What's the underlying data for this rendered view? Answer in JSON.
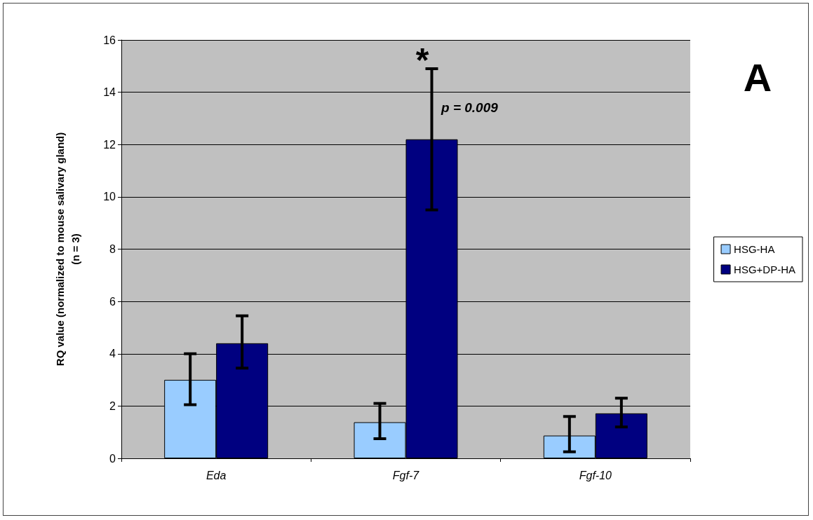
{
  "chart_data": {
    "type": "bar",
    "ylabel": "RQ value (normalized to mouse salivary gland)\n(n = 3)",
    "categories": [
      "Eda",
      "Fgf-7",
      "Fgf-10"
    ],
    "series": [
      {
        "name": "HSG-HA",
        "color": "#99ccff",
        "values": [
          3.0,
          1.38,
          0.87
        ],
        "errors": [
          [
            2.05,
            4.0
          ],
          [
            0.75,
            2.1
          ],
          [
            0.25,
            1.6
          ]
        ]
      },
      {
        "name": "HSG+DP-HA",
        "color": "#000080",
        "values": [
          4.4,
          12.2,
          1.72
        ],
        "errors": [
          [
            3.45,
            5.45
          ],
          [
            9.5,
            14.9
          ],
          [
            1.2,
            2.3
          ]
        ]
      }
    ],
    "ylim": [
      0,
      16
    ],
    "yticks": [
      0,
      2,
      4,
      6,
      8,
      10,
      12,
      14,
      16
    ],
    "grid": "y",
    "legend": "right",
    "annotations": [
      "*",
      "p = 0.009",
      "A"
    ]
  }
}
